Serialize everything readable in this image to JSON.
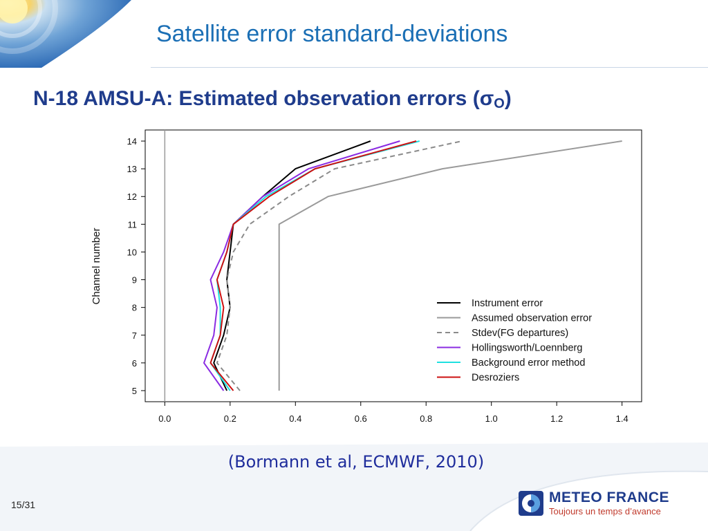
{
  "slide": {
    "title": "Satellite error standard-deviations",
    "chart_heading": "N-18 AMSU-A: Estimated observation errors (σ",
    "chart_heading_sub": "O",
    "chart_heading_close": ")",
    "citation": "(Bormann et al, ECMWF, 2010)",
    "page_number": "15/31",
    "brand_name": "METEO FRANCE",
    "brand_tagline": "Toujours un temps d’avance",
    "colors": {
      "title": "#1b6fb5",
      "heading": "#1f3c8c",
      "citation": "#1f2d9c",
      "brand_red": "#c0392b"
    }
  },
  "chart_data": {
    "type": "line",
    "ylabel": "Channel number",
    "xlabel": "",
    "xlim": [
      -0.06,
      1.46
    ],
    "ylim": [
      4.6,
      14.4
    ],
    "x_ticks": [
      "0.0",
      "0.2",
      "0.4",
      "0.6",
      "0.8",
      "1.0",
      "1.2",
      "1.4"
    ],
    "y_ticks": [
      "5",
      "6",
      "7",
      "8",
      "9",
      "10",
      "11",
      "12",
      "13",
      "14"
    ],
    "channels": [
      5,
      6,
      7,
      8,
      9,
      10,
      11,
      12,
      13,
      14
    ],
    "legend_position": "lower-right",
    "series": [
      {
        "name": "Instrument error",
        "color": "#000000",
        "dash": false,
        "values": [
          0.19,
          0.15,
          0.18,
          0.2,
          0.19,
          0.2,
          0.21,
          0.3,
          0.4,
          0.63
        ]
      },
      {
        "name": "Assumed observation error",
        "color": "#9a9a9a",
        "dash": false,
        "values": [
          0.35,
          0.35,
          0.35,
          0.35,
          0.35,
          0.35,
          0.35,
          0.5,
          0.85,
          1.4
        ]
      },
      {
        "name": "Stdev(FG departures)",
        "color": "#8a8a8a",
        "dash": true,
        "values": [
          0.23,
          0.16,
          0.19,
          0.2,
          0.19,
          0.21,
          0.26,
          0.38,
          0.52,
          0.91
        ]
      },
      {
        "name": "Hollingsworth/Loennberg",
        "color": "#8a2be2",
        "dash": false,
        "values": [
          0.18,
          0.12,
          0.15,
          0.16,
          0.14,
          0.18,
          0.21,
          0.3,
          0.44,
          0.72
        ]
      },
      {
        "name": "Background error method",
        "color": "#1ee0e0",
        "dash": false,
        "values": [
          0.2,
          0.14,
          0.17,
          0.17,
          0.16,
          0.19,
          0.21,
          0.31,
          0.46,
          0.78
        ]
      },
      {
        "name": "Desroziers",
        "color": "#cc1010",
        "dash": false,
        "values": [
          0.21,
          0.14,
          0.17,
          0.18,
          0.16,
          0.19,
          0.21,
          0.32,
          0.46,
          0.77
        ]
      }
    ],
    "reference_line_x": 0.0
  }
}
